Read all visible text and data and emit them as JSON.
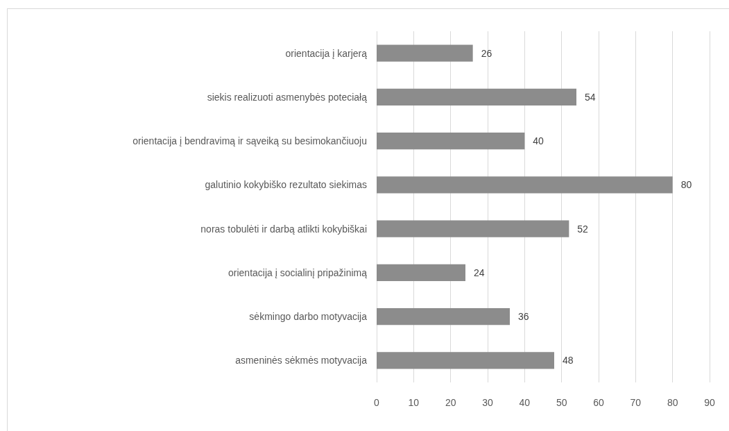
{
  "chart_data": {
    "type": "bar",
    "orientation": "horizontal",
    "categories": [
      "orientacija į karjerą",
      "siekis realizuoti asmenybės poteciałą",
      "orientacija į bendravimą ir sąveiką su besimokančiuoju",
      "galutinio kokybiško rezultato siekimas",
      "noras tobulėti ir darbą atlikti kokybiškai",
      "orientacija į socialinį pripažinimą",
      "sėkmingo darbo motyvacija",
      "asmeninės sėkmės motyvacija"
    ],
    "values": [
      26,
      54,
      40,
      80,
      52,
      24,
      36,
      48
    ],
    "color": "#8c8c8c",
    "xlim": [
      0,
      90
    ],
    "xticks": [
      0,
      10,
      20,
      30,
      40,
      50,
      60,
      70,
      80,
      90
    ],
    "grid": "x",
    "data_labels": true
  }
}
